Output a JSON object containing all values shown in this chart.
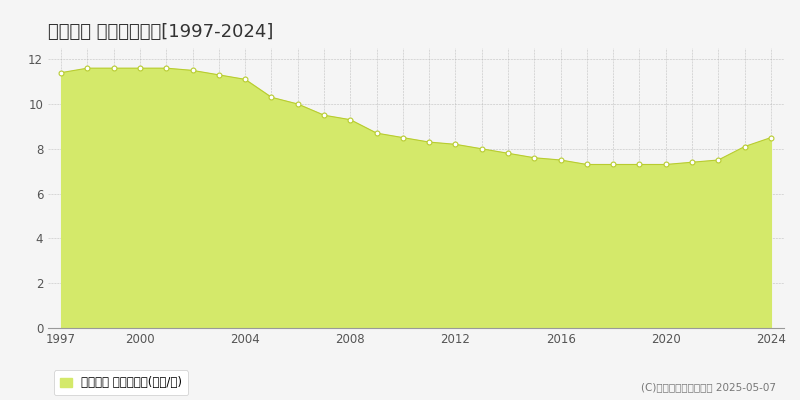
{
  "title": "大刀洗町 基準地価推移[1997-2024]",
  "years": [
    1997,
    1998,
    1999,
    2000,
    2001,
    2002,
    2003,
    2004,
    2005,
    2006,
    2007,
    2008,
    2009,
    2010,
    2011,
    2012,
    2013,
    2014,
    2015,
    2016,
    2017,
    2018,
    2019,
    2020,
    2021,
    2022,
    2023,
    2024
  ],
  "values": [
    11.4,
    11.6,
    11.6,
    11.6,
    11.6,
    11.5,
    11.3,
    11.1,
    10.3,
    10.0,
    9.5,
    9.3,
    8.7,
    8.5,
    8.3,
    8.2,
    8.0,
    7.8,
    7.6,
    7.5,
    7.3,
    7.3,
    7.3,
    7.3,
    7.4,
    7.5,
    8.1,
    8.5
  ],
  "fill_color": "#d4e96a",
  "line_color": "#b8cc30",
  "marker_facecolor": "#ffffff",
  "marker_edgecolor": "#b8cc30",
  "background_color": "#f5f5f5",
  "plot_bg_color": "#f5f5f5",
  "grid_color": "#aaaaaa",
  "axis_color": "#555555",
  "title_color": "#333333",
  "xlim": [
    1996.5,
    2024.5
  ],
  "ylim": [
    0,
    12.5
  ],
  "yticks": [
    0,
    2,
    4,
    6,
    8,
    10,
    12
  ],
  "xticks": [
    1997,
    2000,
    2004,
    2008,
    2012,
    2016,
    2020,
    2024
  ],
  "legend_label": "基準地価 平均坪単価(万円/坪)",
  "copyright_text": "(C)土地価格ドットコム 2025-05-07",
  "title_fontsize": 13,
  "axis_fontsize": 8.5,
  "legend_fontsize": 8.5,
  "copyright_fontsize": 7.5
}
